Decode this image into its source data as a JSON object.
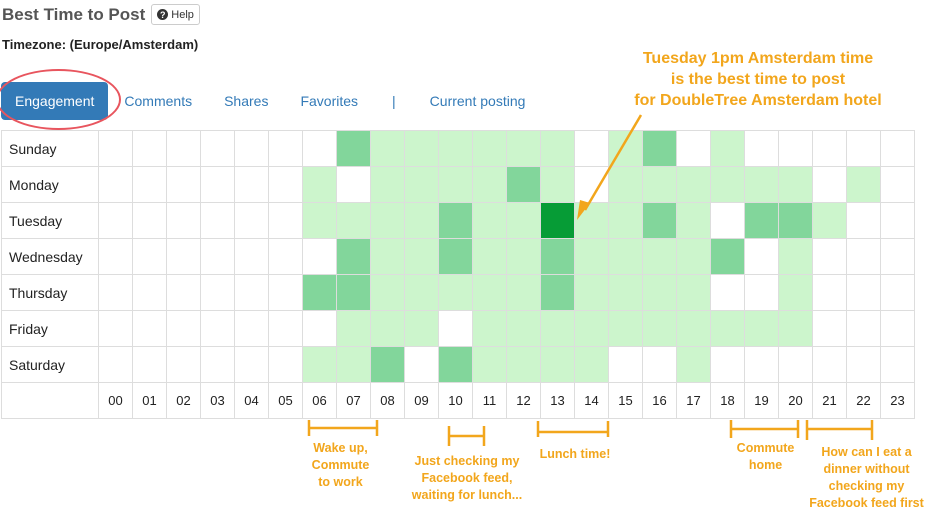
{
  "header": {
    "title": "Best Time to Post",
    "help_label": "Help",
    "help_icon": "question-circle-icon",
    "timezone": "Timezone: (Europe/Amsterdam)"
  },
  "tabs": [
    {
      "label": "Engagement",
      "active": true
    },
    {
      "label": "Comments",
      "active": false
    },
    {
      "label": "Shares",
      "active": false
    },
    {
      "label": "Favorites",
      "active": false
    },
    {
      "label": "|",
      "separator": true
    },
    {
      "label": "Current posting",
      "active": false
    }
  ],
  "colors": {
    "accent": "#337ab7",
    "annotation": "#f2a61c",
    "highlight_ring": "#e8555e",
    "level_0": "#ffffff",
    "level_1": "#ccf5cc",
    "level_2": "#82d69b",
    "level_3": "#069c36"
  },
  "heatmap": {
    "days": [
      "Sunday",
      "Monday",
      "Tuesday",
      "Wednesday",
      "Thursday",
      "Friday",
      "Saturday"
    ],
    "hours": [
      "00",
      "01",
      "02",
      "03",
      "04",
      "05",
      "06",
      "07",
      "08",
      "09",
      "10",
      "11",
      "12",
      "13",
      "14",
      "15",
      "16",
      "17",
      "18",
      "19",
      "20",
      "21",
      "22",
      "23"
    ],
    "levels": [
      [
        0,
        0,
        0,
        0,
        0,
        0,
        0,
        2,
        1,
        1,
        1,
        1,
        1,
        1,
        0,
        1,
        2,
        0,
        1,
        0,
        0,
        0,
        0,
        0
      ],
      [
        0,
        0,
        0,
        0,
        0,
        0,
        1,
        0,
        1,
        1,
        1,
        1,
        2,
        1,
        0,
        1,
        1,
        1,
        1,
        1,
        1,
        0,
        1,
        0
      ],
      [
        0,
        0,
        0,
        0,
        0,
        0,
        1,
        1,
        1,
        1,
        2,
        1,
        1,
        3,
        1,
        1,
        2,
        1,
        0,
        2,
        2,
        1,
        0,
        0
      ],
      [
        0,
        0,
        0,
        0,
        0,
        0,
        0,
        2,
        1,
        1,
        2,
        1,
        1,
        2,
        1,
        1,
        1,
        1,
        2,
        0,
        1,
        0,
        0,
        0
      ],
      [
        0,
        0,
        0,
        0,
        0,
        0,
        2,
        2,
        1,
        1,
        1,
        1,
        1,
        2,
        1,
        1,
        1,
        1,
        0,
        0,
        1,
        0,
        0,
        0
      ],
      [
        0,
        0,
        0,
        0,
        0,
        0,
        0,
        1,
        1,
        1,
        0,
        1,
        1,
        1,
        1,
        1,
        1,
        1,
        1,
        1,
        1,
        0,
        0,
        0
      ],
      [
        0,
        0,
        0,
        0,
        0,
        0,
        1,
        1,
        2,
        0,
        2,
        1,
        1,
        1,
        1,
        0,
        0,
        1,
        0,
        0,
        0,
        0,
        0,
        0
      ]
    ]
  },
  "annotations": {
    "best_time": "Tuesday 1pm Amsterdam time\nis the best time to post\nfor DoubleTree Amsterdam hotel",
    "morning": "Wake up,\nCommute\nto work",
    "prelunch": "Just checking my\nFacebook feed,\nwaiting for lunch...",
    "lunch": "Lunch time!",
    "commute_home": "Commute\nhome",
    "dinner": "How can I eat a\ndinner without\nchecking my\nFacebook feed first"
  }
}
